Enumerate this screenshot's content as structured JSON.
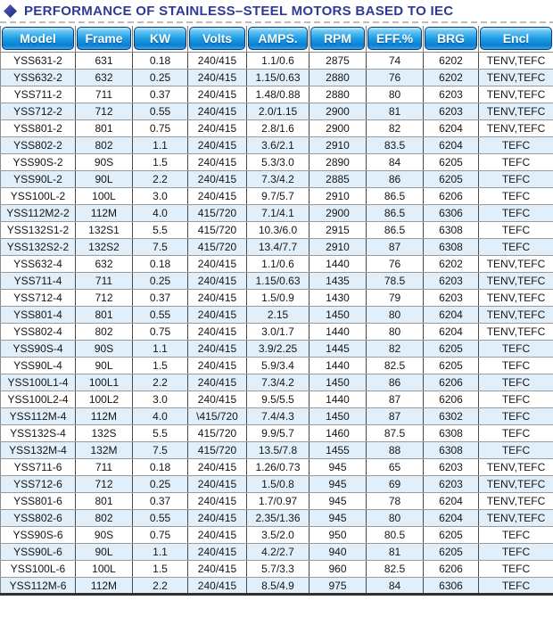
{
  "header": {
    "bullet": "diamond",
    "title": "PERFORMANCE OF STAINLESS–STEEL MOTORS BASED TO IEC"
  },
  "colors": {
    "title_text": "#2e3a97",
    "header_button_top": "#62c3f2",
    "header_button_bottom": "#0b7fd2",
    "header_button_border": "#0e3a74",
    "row_stripe": "#e1effa",
    "cell_text": "#151515"
  },
  "table": {
    "columns": [
      "Model",
      "Frame",
      "KW",
      "Volts",
      "AMPS.",
      "RPM",
      "EFF.%",
      "BRG",
      "Encl"
    ],
    "rows": [
      [
        "YSS631-2",
        "631",
        "0.18",
        "240/415",
        "1.1/0.6",
        "2875",
        "74",
        "6202",
        "TENV,TEFC"
      ],
      [
        "YSS632-2",
        "632",
        "0.25",
        "240/415",
        "1.15/0.63",
        "2880",
        "76",
        "6202",
        "TENV,TEFC"
      ],
      [
        "YSS711-2",
        "711",
        "0.37",
        "240/415",
        "1.48/0.88",
        "2880",
        "80",
        "6203",
        "TENV,TEFC"
      ],
      [
        "YSS712-2",
        "712",
        "0.55",
        "240/415",
        "2.0/1.15",
        "2900",
        "81",
        "6203",
        "TENV,TEFC"
      ],
      [
        "YSS801-2",
        "801",
        "0.75",
        "240/415",
        "2.8/1.6",
        "2900",
        "82",
        "6204",
        "TENV,TEFC"
      ],
      [
        "YSS802-2",
        "802",
        "1.1",
        "240/415",
        "3.6/2.1",
        "2910",
        "83.5",
        "6204",
        "TEFC"
      ],
      [
        "YSS90S-2",
        "90S",
        "1.5",
        "240/415",
        "5.3/3.0",
        "2890",
        "84",
        "6205",
        "TEFC"
      ],
      [
        "YSS90L-2",
        "90L",
        "2.2",
        "240/415",
        "7.3/4.2",
        "2885",
        "86",
        "6205",
        "TEFC"
      ],
      [
        "YSS100L-2",
        "100L",
        "3.0",
        "240/415",
        "9.7/5.7",
        "2910",
        "86.5",
        "6206",
        "TEFC"
      ],
      [
        "YSS112M2-2",
        "112M",
        "4.0",
        "415/720",
        "7.1/4.1",
        "2900",
        "86.5",
        "6306",
        "TEFC"
      ],
      [
        "YSS132S1-2",
        "132S1",
        "5.5",
        "415/720",
        "10.3/6.0",
        "2915",
        "86.5",
        "6308",
        "TEFC"
      ],
      [
        "YSS132S2-2",
        "132S2",
        "7.5",
        "415/720",
        "13.4/7.7",
        "2910",
        "87",
        "6308",
        "TEFC"
      ],
      [
        "YSS632-4",
        "632",
        "0.18",
        "240/415",
        "1.1/0.6",
        "1440",
        "76",
        "6202",
        "TENV,TEFC"
      ],
      [
        "YSS711-4",
        "711",
        "0.25",
        "240/415",
        "1.15/0.63",
        "1435",
        "78.5",
        "6203",
        "TENV,TEFC"
      ],
      [
        "YSS712-4",
        "712",
        "0.37",
        "240/415",
        "1.5/0.9",
        "1430",
        "79",
        "6203",
        "TENV,TEFC"
      ],
      [
        "YSS801-4",
        "801",
        "0.55",
        "240/415",
        "2.15",
        "1450",
        "80",
        "6204",
        "TENV,TEFC"
      ],
      [
        "YSS802-4",
        "802",
        "0.75",
        "240/415",
        "3.0/1.7",
        "1440",
        "80",
        "6204",
        "TENV,TEFC"
      ],
      [
        "YSS90S-4",
        "90S",
        "1.1",
        "240/415",
        "3.9/2.25",
        "1445",
        "82",
        "6205",
        "TEFC"
      ],
      [
        "YSS90L-4",
        "90L",
        "1.5",
        "240/415",
        "5.9/3.4",
        "1440",
        "82.5",
        "6205",
        "TEFC"
      ],
      [
        "YSS100L1-4",
        "100L1",
        "2.2",
        "240/415",
        "7.3/4.2",
        "1450",
        "86",
        "6206",
        "TEFC"
      ],
      [
        "YSS100L2-4",
        "100L2",
        "3.0",
        "240/415",
        "9.5/5.5",
        "1440",
        "87",
        "6206",
        "TEFC"
      ],
      [
        "YSS112M-4",
        "112M",
        "4.0",
        "\\415/720",
        "7.4/4.3",
        "1450",
        "87",
        "6302",
        "TEFC"
      ],
      [
        "YSS132S-4",
        "132S",
        "5.5",
        "415/720",
        "9.9/5.7",
        "1460",
        "87.5",
        "6308",
        "TEFC"
      ],
      [
        "YSS132M-4",
        "132M",
        "7.5",
        "415/720",
        "13.5/7.8",
        "1455",
        "88",
        "6308",
        "TEFC"
      ],
      [
        "YSS711-6",
        "711",
        "0.18",
        "240/415",
        "1.26/0.73",
        "945",
        "65",
        "6203",
        "TENV,TEFC"
      ],
      [
        "YSS712-6",
        "712",
        "0.25",
        "240/415",
        "1.5/0.8",
        "945",
        "69",
        "6203",
        "TENV,TEFC"
      ],
      [
        "YSS801-6",
        "801",
        "0.37",
        "240/415",
        "1.7/0.97",
        "945",
        "78",
        "6204",
        "TENV,TEFC"
      ],
      [
        "YSS802-6",
        "802",
        "0.55",
        "240/415",
        "2.35/1.36",
        "945",
        "80",
        "6204",
        "TENV,TEFC"
      ],
      [
        "YSS90S-6",
        "90S",
        "0.75",
        "240/415",
        "3.5/2.0",
        "950",
        "80.5",
        "6205",
        "TEFC"
      ],
      [
        "YSS90L-6",
        "90L",
        "1.1",
        "240/415",
        "4.2/2.7",
        "940",
        "81",
        "6205",
        "TEFC"
      ],
      [
        "YSS100L-6",
        "100L",
        "1.5",
        "240/415",
        "5.7/3.3",
        "960",
        "82.5",
        "6206",
        "TEFC"
      ],
      [
        "YSS112M-6",
        "112M",
        "2.2",
        "240/415",
        "8.5/4.9",
        "975",
        "84",
        "6306",
        "TEFC"
      ]
    ]
  }
}
